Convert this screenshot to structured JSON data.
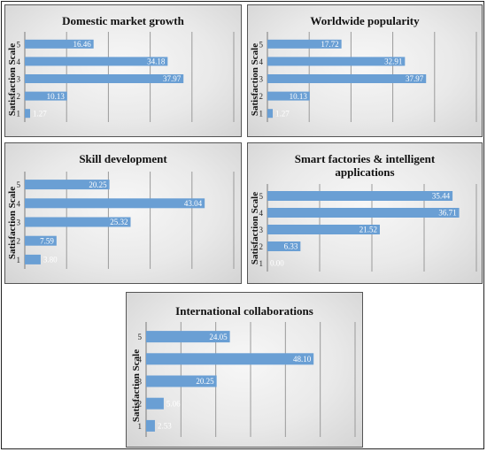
{
  "chart_data": [
    {
      "type": "bar",
      "orientation": "horizontal",
      "title": "Domestic market growth",
      "ylabel": "Satisfaction Scale",
      "xlabel": "",
      "categories": [
        "1",
        "2",
        "3",
        "4",
        "5"
      ],
      "values": [
        1.27,
        10.13,
        37.97,
        34.18,
        16.46
      ],
      "value_labels": [
        "1.27",
        "10.13",
        "37.97",
        "34.18",
        "16.46"
      ],
      "xlim": [
        0,
        50
      ],
      "grid": true,
      "bar_color": "#6a9fd4"
    },
    {
      "type": "bar",
      "orientation": "horizontal",
      "title": "Worldwide popularity",
      "ylabel": "Satisfaction Scale",
      "xlabel": "",
      "categories": [
        "1",
        "2",
        "3",
        "4",
        "5"
      ],
      "values": [
        1.27,
        10.13,
        37.97,
        32.91,
        17.72
      ],
      "value_labels": [
        "1.27",
        "10.13",
        "37.97",
        "32.91",
        "17.72"
      ],
      "xlim": [
        0,
        50
      ],
      "grid": true,
      "bar_color": "#6a9fd4"
    },
    {
      "type": "bar",
      "orientation": "horizontal",
      "title": "Skill development",
      "ylabel": "Satisfaction Scale",
      "xlabel": "",
      "categories": [
        "1",
        "2",
        "3",
        "4",
        "5"
      ],
      "values": [
        3.8,
        7.59,
        25.32,
        43.04,
        20.25
      ],
      "value_labels": [
        "3.80",
        "7.59",
        "25.32",
        "43.04",
        "20.25"
      ],
      "xlim": [
        0,
        50
      ],
      "grid": true,
      "bar_color": "#6a9fd4"
    },
    {
      "type": "bar",
      "orientation": "horizontal",
      "title": "Smart factories  & intelligent\napplications",
      "ylabel": "Satisfaction Scale",
      "xlabel": "",
      "categories": [
        "1",
        "2",
        "3",
        "4",
        "5"
      ],
      "values": [
        0.0,
        6.33,
        21.52,
        36.71,
        35.44
      ],
      "value_labels": [
        "0.00",
        "6.33",
        "21.52",
        "36.71",
        "35.44"
      ],
      "xlim": [
        0,
        40
      ],
      "grid": true,
      "bar_color": "#6a9fd4"
    },
    {
      "type": "bar",
      "orientation": "horizontal",
      "title": "International collaborations",
      "ylabel": "Satisfaction Scale",
      "xlabel": "",
      "categories": [
        "1",
        "2",
        "3",
        "4",
        "5"
      ],
      "values": [
        2.53,
        5.06,
        20.25,
        48.1,
        24.05
      ],
      "value_labels": [
        "2.53",
        "5.06",
        "20.25",
        "48.10",
        "24.05"
      ],
      "xlim": [
        0,
        60
      ],
      "grid": true,
      "bar_color": "#6a9fd4"
    }
  ]
}
